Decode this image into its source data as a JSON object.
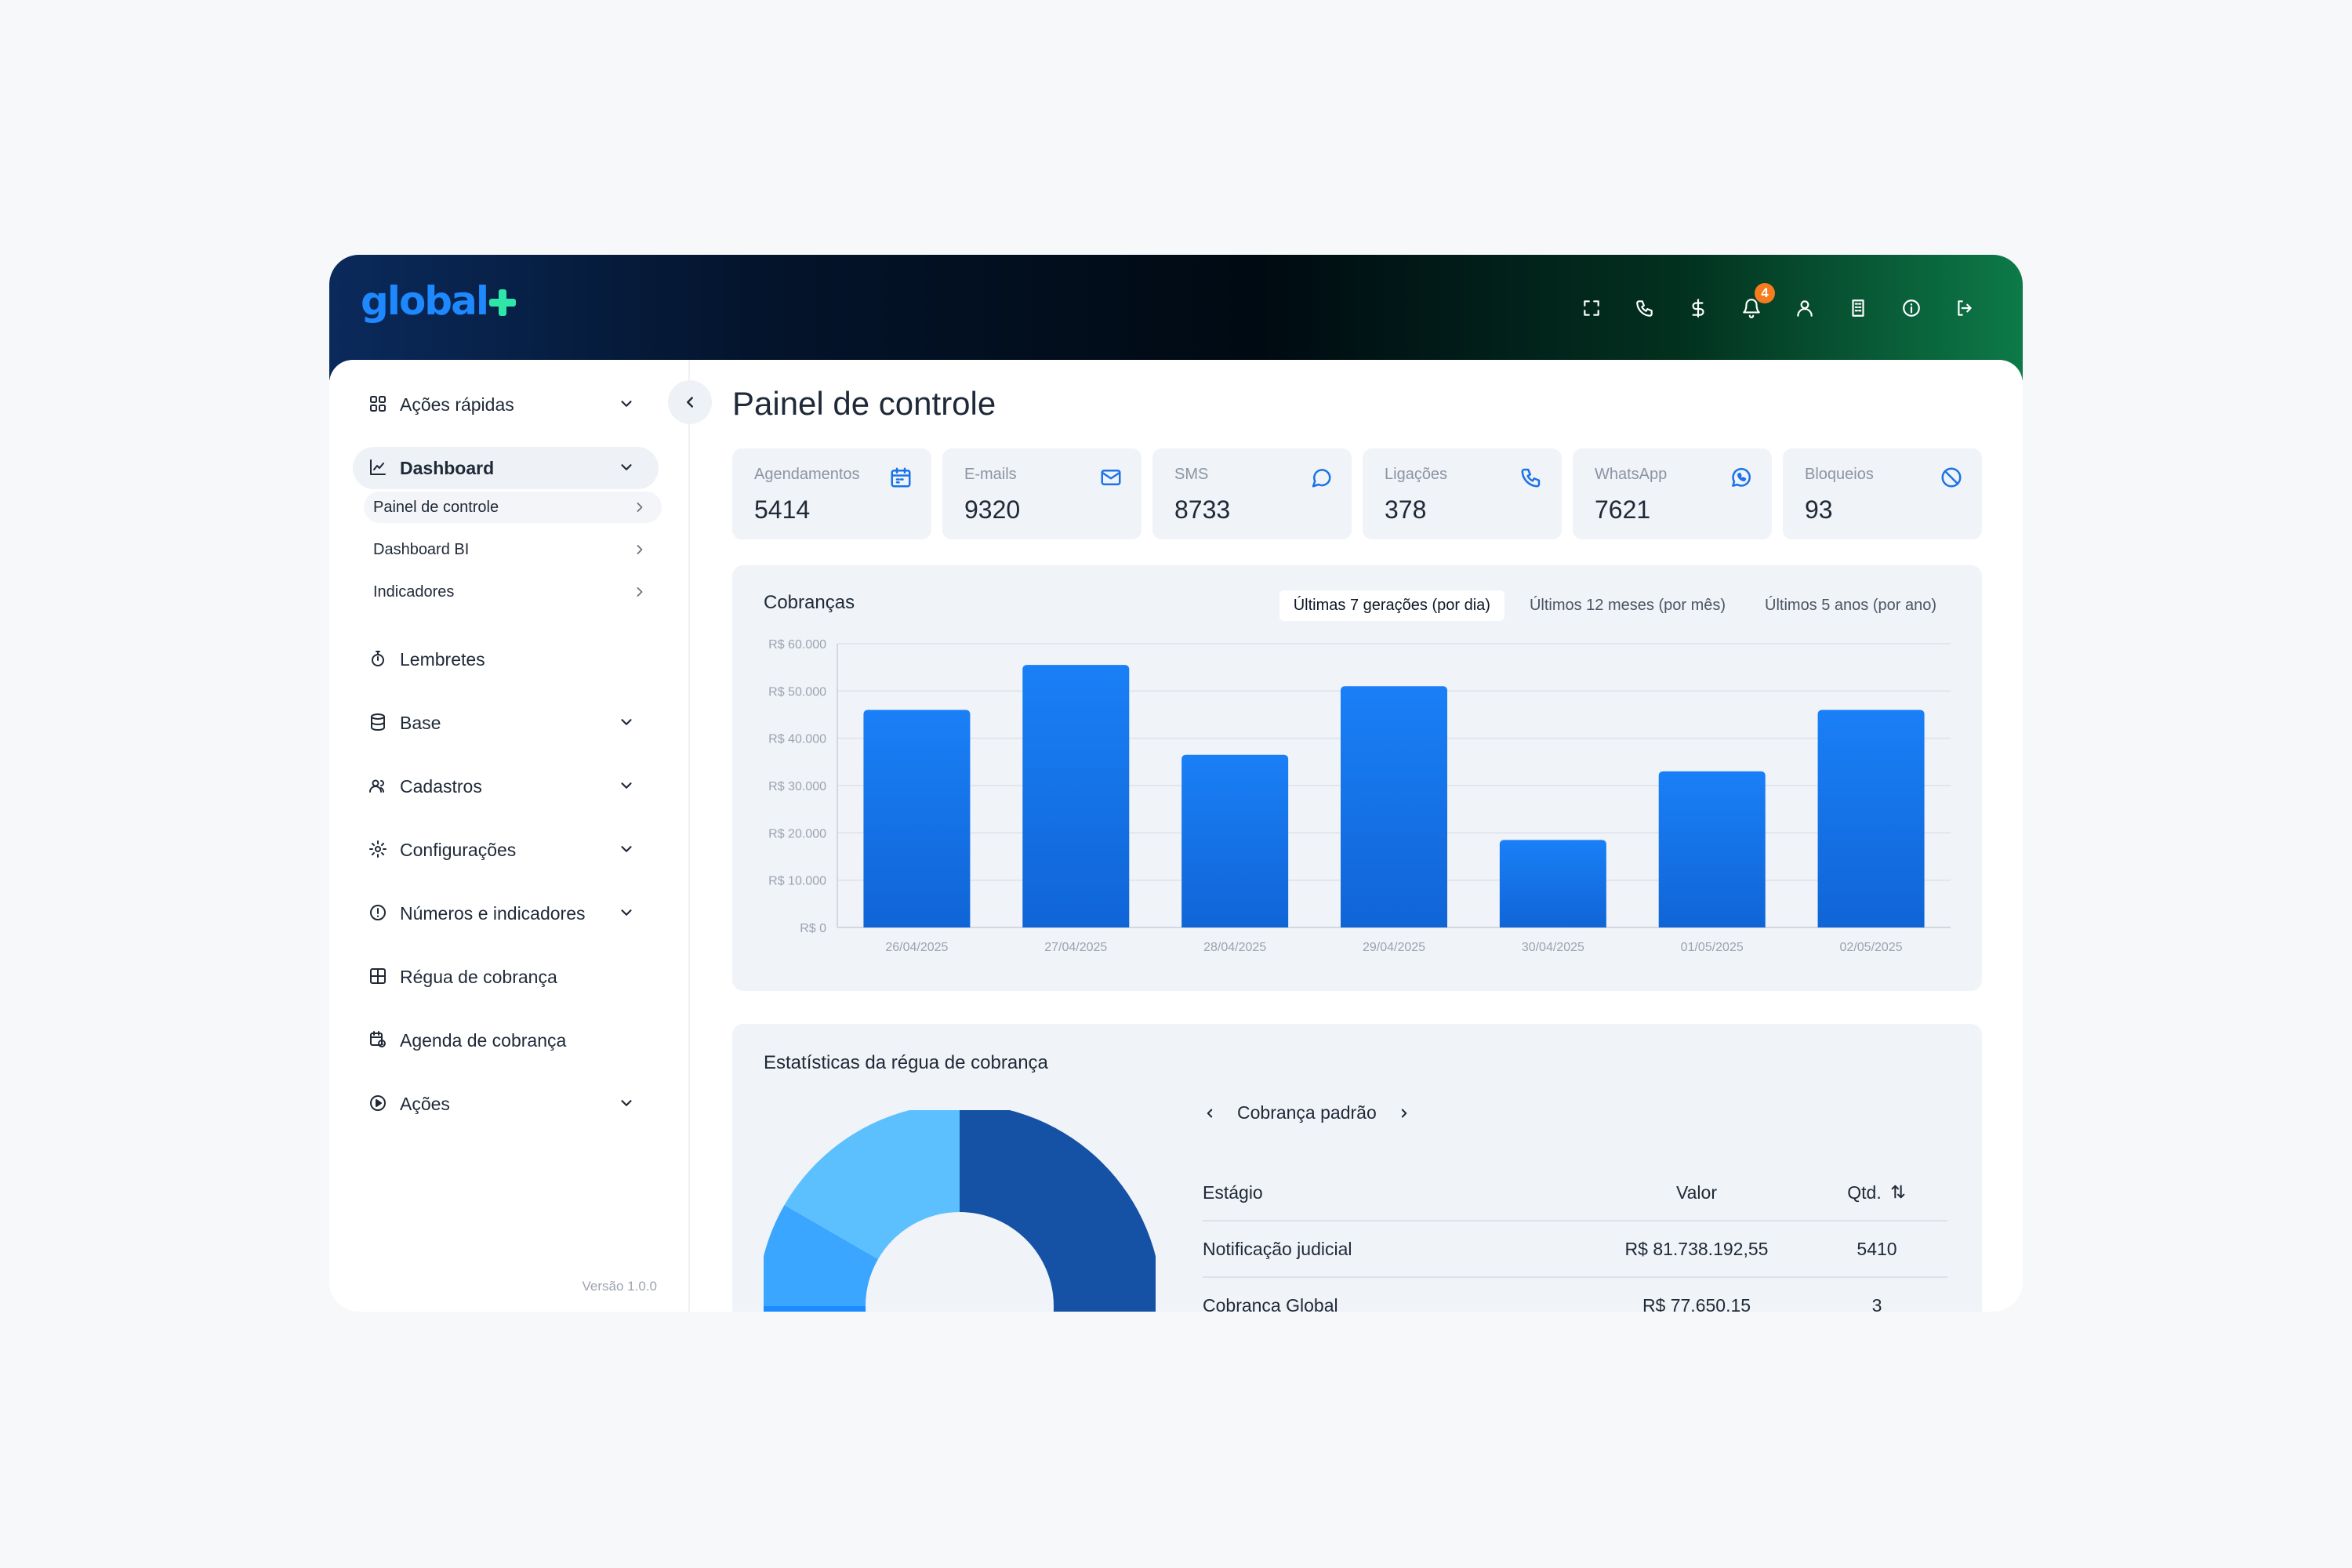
{
  "brand": {
    "logo_part1": "gl",
    "logo_part2": "obal",
    "logo_color_blue": "#1e88ff",
    "logo_color_green": "#2ee6a8"
  },
  "topbar": {
    "icons": [
      "fullscreen-icon",
      "phone-icon",
      "dollar-icon",
      "bell-icon",
      "user-icon",
      "building-icon",
      "info-icon",
      "logout-icon"
    ],
    "notification_count": "4"
  },
  "sidebar": {
    "items": [
      {
        "label": "Ações rápidas",
        "icon": "grid-icon",
        "expandable": true
      },
      {
        "label": "Dashboard",
        "icon": "chart-line-icon",
        "expandable": true,
        "active": true
      },
      {
        "label": "Lembretes",
        "icon": "stopwatch-icon",
        "expandable": false
      },
      {
        "label": "Base",
        "icon": "database-icon",
        "expandable": true
      },
      {
        "label": "Cadastros",
        "icon": "users-icon",
        "expandable": true
      },
      {
        "label": "Configurações",
        "icon": "gear-icon",
        "expandable": true
      },
      {
        "label": "Números e indicadores",
        "icon": "alert-circle-icon",
        "expandable": true
      },
      {
        "label": "Régua de cobrança",
        "icon": "table-icon",
        "expandable": false
      },
      {
        "label": "Agenda de cobrança",
        "icon": "calendar-clock-icon",
        "expandable": false
      },
      {
        "label": "Ações",
        "icon": "play-circle-icon",
        "expandable": true
      }
    ],
    "dashboard_sub": [
      {
        "label": "Painel de controle",
        "active": true
      },
      {
        "label": "Dashboard BI"
      },
      {
        "label": "Indicadores"
      }
    ],
    "version": "Versão 1.0.0"
  },
  "main": {
    "title": "Painel de controle",
    "stats": [
      {
        "label": "Agendamentos",
        "value": "5414",
        "icon": "calendar-icon"
      },
      {
        "label": "E-mails",
        "value": "9320",
        "icon": "mail-icon"
      },
      {
        "label": "SMS",
        "value": "8733",
        "icon": "chat-bubble-icon"
      },
      {
        "label": "Ligações",
        "value": "378",
        "icon": "phone-icon"
      },
      {
        "label": "WhatsApp",
        "value": "7621",
        "icon": "whatsapp-icon"
      },
      {
        "label": "Bloqueios",
        "value": "93",
        "icon": "block-icon"
      }
    ],
    "cobrancas": {
      "title": "Cobranças",
      "tabs": [
        {
          "label": "Últimas 7 gerações (por dia)",
          "active": true
        },
        {
          "label": "Últimos 12 meses (por mês)"
        },
        {
          "label": "Últimos 5 anos (por ano)"
        }
      ]
    },
    "stats_rule": {
      "title": "Estatísticas da régua de cobrança",
      "selector_label": "Cobrança padrão",
      "columns": {
        "stage": "Estágio",
        "value": "Valor",
        "qtd": "Qtd."
      },
      "rows": [
        {
          "stage": "Notificação judicial",
          "value": "R$ 81.738.192,55",
          "qtd": "5410"
        },
        {
          "stage": "Cobrança Global",
          "value": "R$ 77.650,15",
          "qtd": "3"
        }
      ],
      "donut_colors": [
        "#1552a6",
        "#1a8cff",
        "#3aa6ff",
        "#5cc0ff"
      ]
    }
  },
  "chart_data": {
    "type": "bar",
    "title": "Cobranças",
    "categories": [
      "26/04/2025",
      "27/04/2025",
      "28/04/2025",
      "29/04/2025",
      "30/04/2025",
      "01/05/2025",
      "02/05/2025"
    ],
    "values": [
      46000,
      55500,
      36500,
      51000,
      18500,
      33000,
      46000
    ],
    "y_ticks": [
      "R$ 0",
      "R$ 10.000",
      "R$ 20.000",
      "R$ 30.000",
      "R$ 40.000",
      "R$ 50.000",
      "R$ 60.000"
    ],
    "ylim": [
      0,
      60000
    ],
    "grid": true,
    "bar_color": "#1576ee"
  }
}
